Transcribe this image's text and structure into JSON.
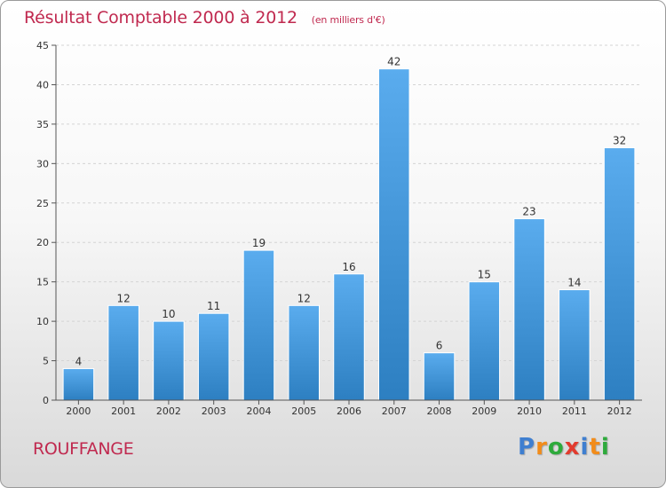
{
  "header": {
    "title": "Résultat Comptable 2000 à 2012",
    "subtitle": "(en milliers d'€)"
  },
  "footer": {
    "town": "ROUFFANGE",
    "logo_letters": [
      "P",
      "r",
      "o",
      "x",
      "i",
      "t",
      "i"
    ]
  },
  "colors": {
    "title": "#c0294f",
    "bar_top": "#5aacee",
    "bar_bottom": "#2d7fc1",
    "logo": [
      "#3f7fd0",
      "#f28c1a",
      "#2eaa3c",
      "#e23b2e",
      "#3f7fd0",
      "#f28c1a",
      "#2eaa3c"
    ]
  },
  "chart_data": {
    "type": "bar",
    "title": "Résultat Comptable 2000 à 2012",
    "xlabel": "",
    "ylabel": "",
    "ylim": [
      0,
      45
    ],
    "yticks": [
      0,
      5,
      10,
      15,
      20,
      25,
      30,
      35,
      40,
      45
    ],
    "grid": true,
    "categories": [
      "2000",
      "2001",
      "2002",
      "2003",
      "2004",
      "2005",
      "2006",
      "2007",
      "2008",
      "2009",
      "2010",
      "2011",
      "2012"
    ],
    "values": [
      4,
      12,
      10,
      11,
      19,
      12,
      16,
      42,
      6,
      15,
      23,
      14,
      32
    ]
  }
}
